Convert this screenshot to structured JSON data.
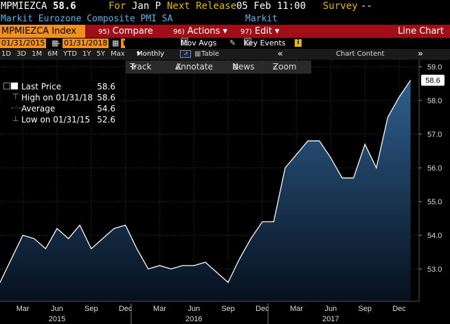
{
  "header": {
    "ticker": "MPMIEZCA",
    "last_value": "58.6",
    "for_label": "For",
    "for_value": "Jan P",
    "next_release_label": "Next Release",
    "next_release_value": "05 Feb 11:00",
    "survey_label": "Survey",
    "survey_value": "--",
    "name": "Markit Eurozone Composite PMI SA",
    "source": "Markit"
  },
  "menu": {
    "security": "MPMIEZCA Index",
    "compare_num": "95)",
    "compare": "Compare",
    "actions_num": "96)",
    "actions": "Actions",
    "edit_num": "97)",
    "edit": "Edit",
    "chart_type": "Line Chart"
  },
  "controls": {
    "start_date": "01/31/2015",
    "end_date": "01/31/2018",
    "field": "Last Price",
    "mov_avgs": "Mov Avgs",
    "key_events": "Key Events",
    "periods": [
      "1D",
      "3D",
      "1M",
      "6M",
      "YTD",
      "1Y",
      "5Y",
      "Max"
    ],
    "frequency": "Monthly",
    "table": "Table",
    "chart_content": "Chart Content"
  },
  "toolbar": {
    "track": "Track",
    "annotate": "Annotate",
    "news": "News",
    "zoom": "Zoom"
  },
  "legend": {
    "last_price_label": "Last Price",
    "last_price_value": "58.6",
    "high_label": "High on 01/31/18",
    "high_value": "58.6",
    "average_label": "Average",
    "average_value": "54.6",
    "low_label": "Low on 01/31/15",
    "low_value": "52.6"
  },
  "colors": {
    "accent_orange": "#f0901e",
    "menu_red": "#a00f17",
    "line": "#ffffff",
    "area_top": "#2f5f8e",
    "area_bottom": "#07101e",
    "header_blue": "#5ab4e8",
    "header_yellow": "#e6b800"
  },
  "chart_data": {
    "type": "area",
    "x": [
      "2015-01",
      "2015-02",
      "2015-03",
      "2015-04",
      "2015-05",
      "2015-06",
      "2015-07",
      "2015-08",
      "2015-09",
      "2015-10",
      "2015-11",
      "2015-12",
      "2016-01",
      "2016-02",
      "2016-03",
      "2016-04",
      "2016-05",
      "2016-06",
      "2016-07",
      "2016-08",
      "2016-09",
      "2016-10",
      "2016-11",
      "2016-12",
      "2017-01",
      "2017-02",
      "2017-03",
      "2017-04",
      "2017-05",
      "2017-06",
      "2017-07",
      "2017-08",
      "2017-09",
      "2017-10",
      "2017-11",
      "2017-12",
      "2018-01"
    ],
    "series": [
      {
        "name": "Last Price",
        "values": [
          52.6,
          53.3,
          54.0,
          53.9,
          53.6,
          54.2,
          53.9,
          54.3,
          53.6,
          53.9,
          54.2,
          54.3,
          53.6,
          53.0,
          53.1,
          53.0,
          53.1,
          53.1,
          53.2,
          52.9,
          52.6,
          53.3,
          53.9,
          54.4,
          54.4,
          56.0,
          56.4,
          56.8,
          56.8,
          56.3,
          55.7,
          55.7,
          56.7,
          56.0,
          57.5,
          58.1,
          58.6
        ]
      }
    ],
    "y_ticks": [
      "53.0",
      "54.0",
      "55.0",
      "56.0",
      "57.0",
      "58.0",
      "59.0"
    ],
    "ylim": [
      52.1,
      59.1
    ],
    "month_ticks": [
      {
        "label": "Mar",
        "x": "2015-03"
      },
      {
        "label": "Jun",
        "x": "2015-06"
      },
      {
        "label": "Sep",
        "x": "2015-09"
      },
      {
        "label": "Dec",
        "x": "2015-12"
      },
      {
        "label": "Mar",
        "x": "2016-03"
      },
      {
        "label": "Jun",
        "x": "2016-06"
      },
      {
        "label": "Sep",
        "x": "2016-09"
      },
      {
        "label": "Dec",
        "x": "2016-12"
      },
      {
        "label": "Mar",
        "x": "2017-03"
      },
      {
        "label": "Jun",
        "x": "2017-06"
      },
      {
        "label": "Sep",
        "x": "2017-09"
      },
      {
        "label": "Dec",
        "x": "2017-12"
      }
    ],
    "year_ticks": [
      {
        "label": "2015",
        "x": "2015-06"
      },
      {
        "label": "2016",
        "x": "2016-06"
      },
      {
        "label": "2017",
        "x": "2017-06"
      }
    ],
    "last_label": "58.6",
    "grid": true,
    "legend_position": "top-left"
  }
}
